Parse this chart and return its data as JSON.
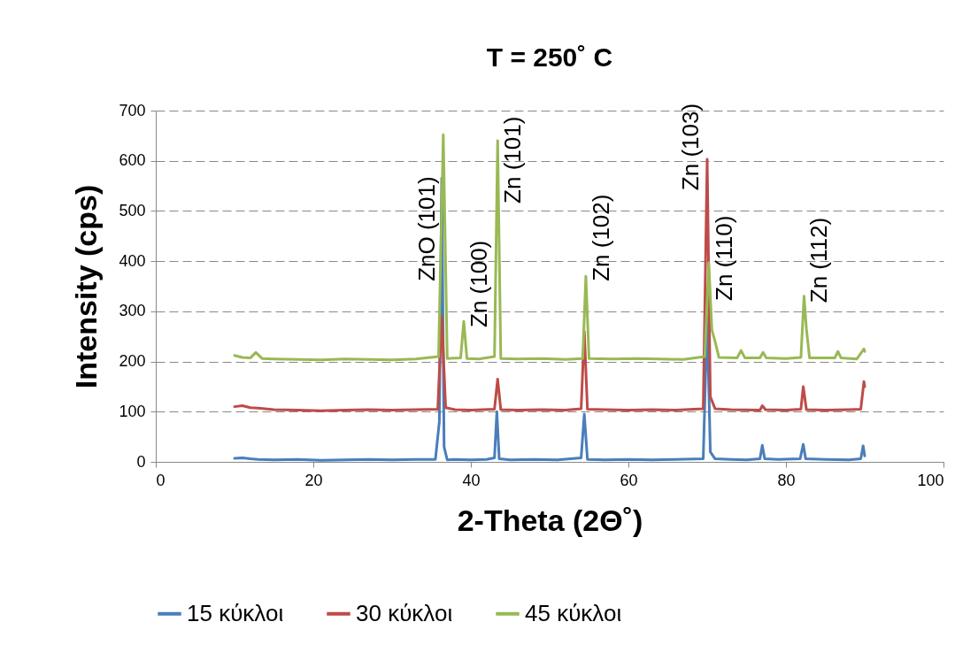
{
  "chart_data": {
    "type": "line",
    "title": "T = 250˚ C",
    "xlabel": "2-Theta (2Θ˚)",
    "ylabel": "Intensity (cps)",
    "xlim": [
      0,
      100
    ],
    "xticks": [
      0,
      20,
      40,
      60,
      80,
      100
    ],
    "ylim": [
      0,
      700
    ],
    "yticks": [
      0,
      100,
      200,
      300,
      400,
      500,
      600,
      700
    ],
    "grid": "y",
    "legend": "bottom",
    "line_style": "solid",
    "marker": "none",
    "annotations": [
      {
        "text": "ZnO (101)",
        "x": 36.5,
        "y": 360
      },
      {
        "text": "Zn (100)",
        "x": 39.1,
        "y": 268
      },
      {
        "text": "Zn (101)",
        "x": 43.4,
        "y": 515
      },
      {
        "text": "Zn (102)",
        "x": 54.6,
        "y": 360
      },
      {
        "text": "Zn (103)",
        "x": 70.0,
        "y": 541
      },
      {
        "text": "Zn (110)",
        "x": 70.2,
        "y": 321
      },
      {
        "text": "Zn (112)",
        "x": 82.3,
        "y": 317
      }
    ],
    "series": [
      {
        "name": "15 κύκλοι",
        "color": "#4a7ebb",
        "x": [
          10,
          11,
          12,
          13,
          15,
          18,
          21,
          24,
          27,
          30,
          33,
          35.5,
          36.0,
          36.3,
          36.6,
          37,
          38,
          40,
          42,
          43.0,
          43.3,
          43.6,
          45,
          48,
          51,
          54.0,
          54.4,
          54.8,
          57,
          60,
          63,
          66,
          69.5,
          70.0,
          70.4,
          71,
          73,
          75,
          76.7,
          77.0,
          77.3,
          79,
          81.8,
          82.2,
          82.5,
          85,
          88,
          89.5,
          89.8,
          90
        ],
        "values": [
          7,
          8,
          6,
          5,
          4,
          5,
          3,
          4,
          5,
          4,
          5,
          5,
          80,
          565,
          30,
          4,
          5,
          4,
          5,
          8,
          100,
          6,
          4,
          5,
          4,
          8,
          95,
          5,
          4,
          5,
          4,
          5,
          6,
          290,
          20,
          6,
          5,
          4,
          6,
          33,
          6,
          5,
          6,
          35,
          6,
          5,
          4,
          6,
          32,
          12
        ]
      },
      {
        "name": "30 κύκλοι",
        "color": "#be4b48",
        "x": [
          10,
          11,
          12,
          13,
          15,
          18,
          21,
          24,
          27,
          30,
          33,
          35.8,
          36.3,
          36.8,
          38,
          40,
          43.0,
          43.4,
          43.8,
          46,
          49,
          52,
          54.0,
          54.4,
          54.8,
          57,
          60,
          63,
          66,
          69.5,
          70.0,
          70.4,
          71,
          73,
          76.7,
          77.0,
          77.4,
          80,
          81.9,
          82.2,
          82.6,
          85,
          88,
          89.5,
          89.9,
          90
        ],
        "values": [
          110,
          112,
          108,
          107,
          104,
          103,
          102,
          103,
          104,
          103,
          104,
          105,
          290,
          108,
          104,
          103,
          105,
          165,
          104,
          103,
          104,
          103,
          106,
          260,
          105,
          104,
          103,
          104,
          103,
          106,
          603,
          130,
          106,
          104,
          103,
          112,
          104,
          103,
          105,
          150,
          104,
          103,
          104,
          105,
          160,
          150
        ]
      },
      {
        "name": "45 κύκλοι",
        "color": "#98b954",
        "x": [
          10,
          11,
          12,
          12.7,
          13.5,
          15,
          18,
          21,
          24,
          27,
          30,
          33,
          35.9,
          36.5,
          37.0,
          38.7,
          39.1,
          39.5,
          41,
          43.0,
          43.4,
          43.8,
          46,
          49,
          52,
          54.2,
          54.6,
          55.0,
          58,
          61,
          64,
          67,
          69.7,
          70.2,
          70.6,
          71.0,
          71.5,
          73.8,
          74.3,
          74.8,
          76.7,
          77.1,
          77.5,
          80,
          81.9,
          82.3,
          82.6,
          83,
          86.2,
          86.6,
          87,
          89,
          89.9,
          90
        ],
        "values": [
          212,
          208,
          207,
          218,
          206,
          205,
          204,
          203,
          205,
          204,
          203,
          205,
          210,
          652,
          206,
          207,
          280,
          206,
          205,
          210,
          640,
          206,
          205,
          206,
          204,
          206,
          370,
          206,
          205,
          206,
          205,
          204,
          210,
          397,
          263,
          240,
          208,
          207,
          222,
          207,
          207,
          218,
          207,
          206,
          208,
          330,
          265,
          207,
          207,
          220,
          207,
          205,
          225,
          220
        ]
      }
    ]
  }
}
